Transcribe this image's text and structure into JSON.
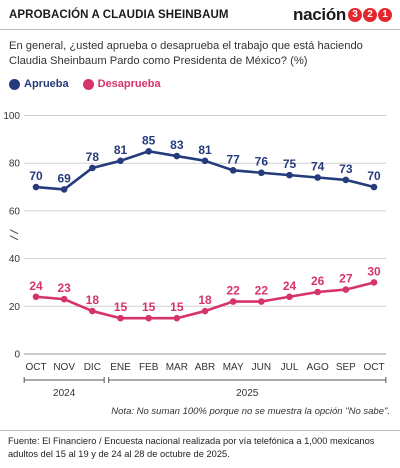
{
  "header": {
    "title": "APROBACIÓN A CLAUDIA SHEINBAUM",
    "brand_word": "nación",
    "brand_digits": [
      "3",
      "2",
      "1"
    ]
  },
  "question": "En general, ¿usted aprueba o desaprueba el trabajo que está haciendo Claudia Sheinbaum Pardo como Presidenta de México? (%)",
  "colors": {
    "aprueba": "#253b7c",
    "desaprueba": "#d6336c"
  },
  "chart_data": {
    "type": "line",
    "categories": [
      "OCT",
      "NOV",
      "DIC",
      "ENE",
      "FEB",
      "MAR",
      "ABR",
      "MAY",
      "JUN",
      "JUL",
      "AGO",
      "SEP",
      "OCT"
    ],
    "year_groups": [
      {
        "label": "2024",
        "start": 0,
        "end": 2
      },
      {
        "label": "2025",
        "start": 3,
        "end": 12
      }
    ],
    "series": [
      {
        "name": "Aprueba",
        "values": [
          70,
          69,
          78,
          81,
          85,
          83,
          81,
          77,
          76,
          75,
          74,
          73,
          70
        ]
      },
      {
        "name": "Desaprueba",
        "values": [
          24,
          23,
          18,
          15,
          15,
          15,
          18,
          22,
          22,
          24,
          26,
          27,
          30
        ]
      }
    ],
    "ylim": [
      0,
      100
    ],
    "yticks": [
      0,
      20,
      40,
      60,
      80,
      100
    ],
    "grid": true,
    "legend": "top-left",
    "axis_break": true
  },
  "note": "Nota: No suman 100% porque no se muestra la opción \"No sabe\".",
  "source": "Fuente: El Financiero / Encuesta nacional realizada por vía telefónica a 1,000 mexicanos adultos del 15 al 19 y de 24 al 28 de octubre de 2025."
}
